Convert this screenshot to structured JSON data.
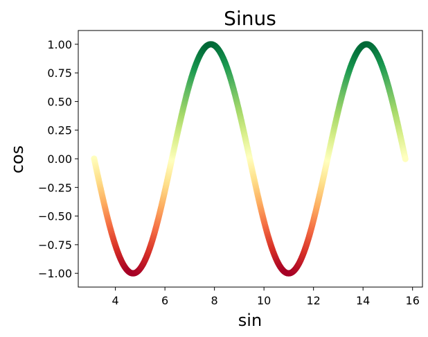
{
  "chart_data": {
    "type": "scatter",
    "title": "Sinus",
    "xlabel": "sin",
    "ylabel": "cos",
    "xlim": [
      2.5,
      16.4
    ],
    "ylim": [
      -1.12,
      1.12
    ],
    "x_ticks": [
      4,
      6,
      8,
      10,
      12,
      14,
      16
    ],
    "y_ticks": [
      -1.0,
      -0.75,
      -0.5,
      -0.25,
      0.0,
      0.25,
      0.5,
      0.75,
      1.0
    ],
    "x_tick_labels": [
      "4",
      "6",
      "8",
      "10",
      "12",
      "14",
      "16"
    ],
    "y_tick_labels": [
      "−1.00",
      "−0.75",
      "−0.50",
      "−0.25",
      "0.00",
      "0.25",
      "0.50",
      "0.75",
      "1.00"
    ],
    "series": [
      {
        "x_range": [
          3.14,
          15.71
        ],
        "function": "sin(x)",
        "colormap": "RdYlGn",
        "color_by": "y"
      }
    ],
    "colormap_stops": [
      "#a50026",
      "#d73027",
      "#f46d43",
      "#fdae61",
      "#fee08b",
      "#ffffbf",
      "#d9ef8b",
      "#a6d96a",
      "#66bd63",
      "#1a9850",
      "#006837"
    ],
    "grid": false,
    "legend": "none"
  }
}
